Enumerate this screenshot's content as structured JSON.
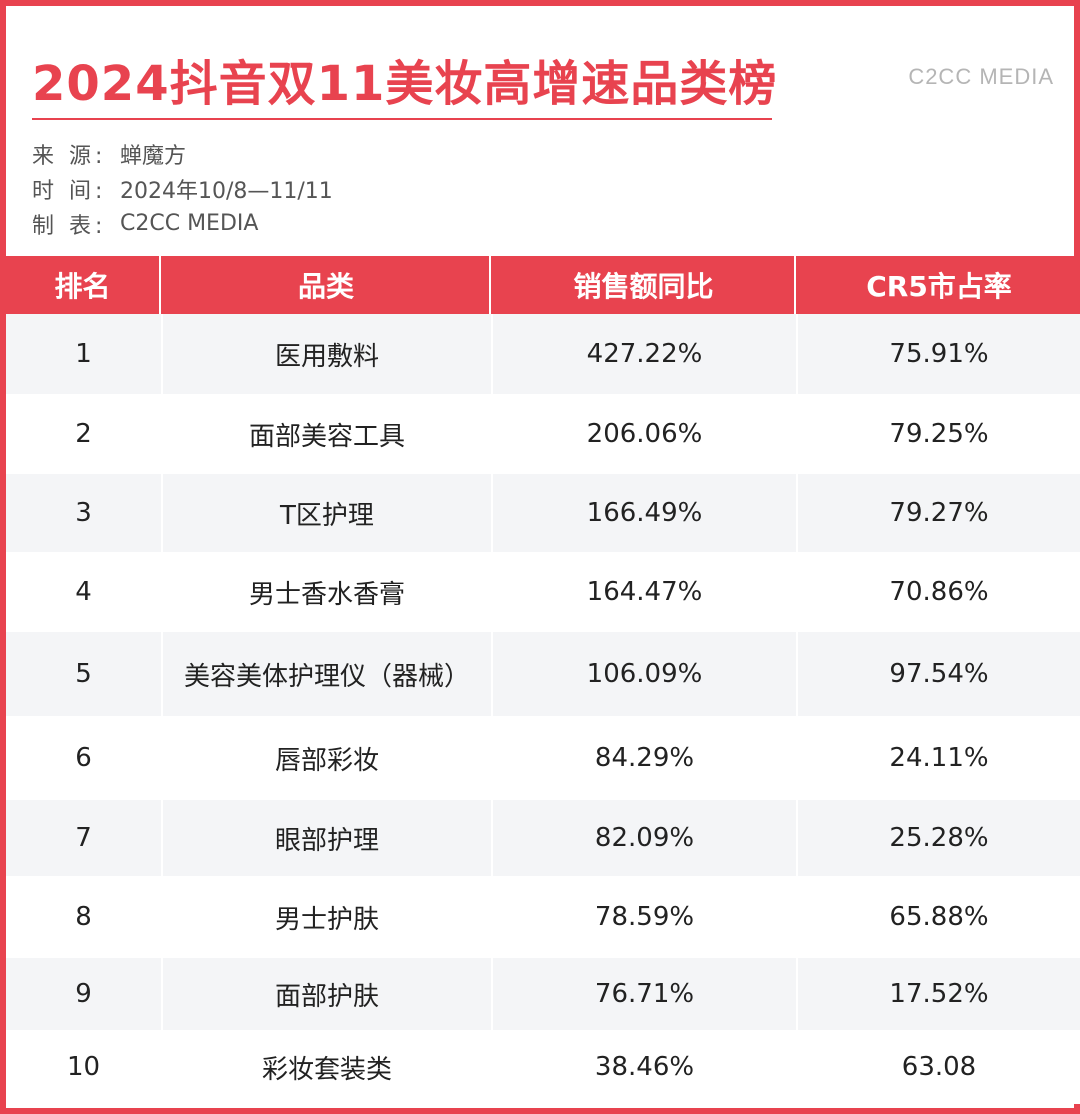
{
  "header": {
    "title": "2024抖音双11美妆高增速品类榜",
    "brand": "C2CC MEDIA",
    "meta": [
      {
        "label": "来 源:",
        "value": "蝉魔方"
      },
      {
        "label": "时 间:",
        "value": "2024年10/8—11/11"
      },
      {
        "label": "制 表:",
        "value": "C2CC  MEDIA"
      }
    ]
  },
  "colors": {
    "accent": "#e8434f",
    "stripe": "#f4f5f7",
    "text": "#222222"
  },
  "chart_data": {
    "type": "table",
    "title": "2024抖音双11美妆高增速品类榜",
    "columns": [
      "排名",
      "品类",
      "销售额同比",
      "CR5市占率"
    ],
    "rows": [
      [
        "1",
        "医用敷料",
        "427.22%",
        "75.91%"
      ],
      [
        "2",
        "面部美容工具",
        "206.06%",
        "79.25%"
      ],
      [
        "3",
        "T区护理",
        "166.49%",
        "79.27%"
      ],
      [
        "4",
        "男士香水香膏",
        "164.47%",
        "70.86%"
      ],
      [
        "5",
        "美容美体护理仪（器械）",
        "106.09%",
        "97.54%"
      ],
      [
        "6",
        "唇部彩妆",
        "84.29%",
        "24.11%"
      ],
      [
        "7",
        "眼部护理",
        "82.09%",
        "25.28%"
      ],
      [
        "8",
        "男士护肤",
        "78.59%",
        "65.88%"
      ],
      [
        "9",
        "面部护肤",
        "76.71%",
        "17.52%"
      ],
      [
        "10",
        "彩妆套装类",
        "38.46%",
        "63.08"
      ]
    ]
  }
}
